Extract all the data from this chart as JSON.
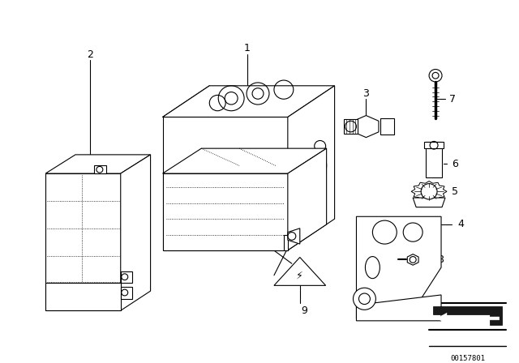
{
  "bg_color": "#ffffff",
  "line_color": "#000000",
  "fig_width": 6.4,
  "fig_height": 4.48,
  "dpi": 100,
  "catalog_id": "00157801",
  "lw": 0.8
}
